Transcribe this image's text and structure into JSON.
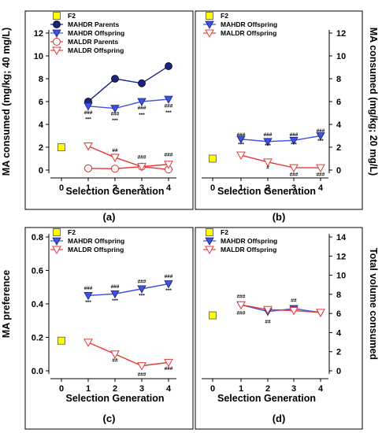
{
  "chart_data": [
    {
      "panel": "a",
      "type": "line",
      "panel_label": "(a)",
      "xlabel": "Selection Generation",
      "ylabel": "MA consumed (mg/kg; 40 mg/L)",
      "ylabel_side": "left",
      "xlim": [
        0,
        4
      ],
      "ylim": [
        0,
        12
      ],
      "yticks": [
        0,
        2,
        4,
        6,
        8,
        10,
        12
      ],
      "grid": false,
      "legend_position": "top-left",
      "series": [
        {
          "name": "F2",
          "marker": "square",
          "color": "#ffff00",
          "x": [
            0
          ],
          "values": [
            2.0
          ]
        },
        {
          "name": "MAHDR Parents",
          "marker": "circle-filled",
          "color": "#1a237e",
          "x": [
            1,
            2,
            3,
            4
          ],
          "values": [
            6.0,
            8.0,
            7.6,
            9.1
          ]
        },
        {
          "name": "MAHDR Offspring",
          "marker": "triangle-down",
          "color": "#3f51e0",
          "x": [
            1,
            2,
            3,
            4
          ],
          "values": [
            5.6,
            5.4,
            6.0,
            6.2
          ]
        },
        {
          "name": "MALDR Parents",
          "marker": "circle-open",
          "color": "#d32f2f",
          "x": [
            1,
            2,
            3,
            4
          ],
          "values": [
            0.15,
            0.12,
            0.3,
            0.05
          ]
        },
        {
          "name": "MALDR Offspring",
          "marker": "triangle-down-open",
          "color": "#e53935",
          "x": [
            1,
            2,
            3,
            4
          ],
          "values": [
            2.1,
            1.1,
            0.3,
            0.5
          ]
        }
      ],
      "annotations": [
        {
          "x": 1,
          "y": 4.9,
          "text": "###"
        },
        {
          "x": 1,
          "y": 4.3,
          "text": "***"
        },
        {
          "x": 2,
          "y": 4.8,
          "text": "###"
        },
        {
          "x": 2,
          "y": 4.2,
          "text": "***"
        },
        {
          "x": 3,
          "y": 5.3,
          "text": "###"
        },
        {
          "x": 3,
          "y": 4.7,
          "text": "***"
        },
        {
          "x": 4,
          "y": 5.5,
          "text": "###"
        },
        {
          "x": 4,
          "y": 4.9,
          "text": "***"
        },
        {
          "x": 2,
          "y": 1.6,
          "text": "##"
        },
        {
          "x": 3,
          "y": 1.0,
          "text": "###"
        },
        {
          "x": 4,
          "y": 1.2,
          "text": "###"
        }
      ]
    },
    {
      "panel": "b",
      "type": "line",
      "panel_label": "(b)",
      "xlabel": "Selection Generation",
      "ylabel": "MA consumed (mg/kg; 20 mg/L)",
      "ylabel_side": "right",
      "xlim": [
        0,
        4
      ],
      "ylim": [
        0,
        12
      ],
      "yticks": [
        0,
        2,
        4,
        6,
        8,
        10,
        12
      ],
      "grid": false,
      "legend_position": "top-left",
      "series": [
        {
          "name": "F2",
          "marker": "square",
          "color": "#ffff00",
          "x": [
            0
          ],
          "values": [
            1.0
          ]
        },
        {
          "name": "MAHDR Offspring",
          "marker": "triangle-down",
          "color": "#3f51e0",
          "x": [
            1,
            2,
            3,
            4
          ],
          "values": [
            2.7,
            2.5,
            2.6,
            3.0
          ]
        },
        {
          "name": "MALDR Offspring",
          "marker": "triangle-down-open",
          "color": "#e53935",
          "x": [
            1,
            2,
            3,
            4
          ],
          "values": [
            1.3,
            0.7,
            0.2,
            0.2
          ]
        }
      ],
      "annotations": [
        {
          "x": 1,
          "y": 2.95,
          "text": "###"
        },
        {
          "x": 1,
          "y": 2.1,
          "text": "***"
        },
        {
          "x": 2,
          "y": 2.95,
          "text": "###"
        },
        {
          "x": 2,
          "y": 2.0,
          "text": "***"
        },
        {
          "x": 3,
          "y": 2.95,
          "text": "###"
        },
        {
          "x": 3,
          "y": 2.1,
          "text": "***"
        },
        {
          "x": 4,
          "y": 3.3,
          "text": "###"
        },
        {
          "x": 4,
          "y": 2.4,
          "text": "***"
        },
        {
          "x": 2,
          "y": 0.1,
          "text": "#"
        },
        {
          "x": 3,
          "y": -0.5,
          "text": "###"
        },
        {
          "x": 4,
          "y": -0.5,
          "text": "###"
        }
      ]
    },
    {
      "panel": "c",
      "type": "line",
      "panel_label": "(c)",
      "xlabel": "Selection Generation",
      "ylabel": "MA preference",
      "ylabel_side": "left",
      "xlim": [
        0,
        4
      ],
      "ylim": [
        0,
        0.8
      ],
      "yticks": [
        0.0,
        0.2,
        0.4,
        0.6,
        0.8
      ],
      "grid": false,
      "legend_position": "top-left",
      "series": [
        {
          "name": "F2",
          "marker": "square",
          "color": "#ffff00",
          "x": [
            0
          ],
          "values": [
            0.18
          ]
        },
        {
          "name": "MAHDR Offspring",
          "marker": "triangle-down",
          "color": "#3f51e0",
          "x": [
            1,
            2,
            3,
            4
          ],
          "values": [
            0.45,
            0.46,
            0.49,
            0.52
          ]
        },
        {
          "name": "MALDR Offspring",
          "marker": "triangle-down-open",
          "color": "#e53935",
          "x": [
            1,
            2,
            3,
            4
          ],
          "values": [
            0.17,
            0.1,
            0.03,
            0.05
          ]
        }
      ],
      "annotations": [
        {
          "x": 1,
          "y": 0.485,
          "text": "###"
        },
        {
          "x": 1,
          "y": 0.4,
          "text": "***"
        },
        {
          "x": 2,
          "y": 0.495,
          "text": "###"
        },
        {
          "x": 2,
          "y": 0.41,
          "text": "***"
        },
        {
          "x": 3,
          "y": 0.525,
          "text": "###"
        },
        {
          "x": 3,
          "y": 0.44,
          "text": "***"
        },
        {
          "x": 4,
          "y": 0.555,
          "text": "###"
        },
        {
          "x": 4,
          "y": 0.47,
          "text": "***"
        },
        {
          "x": 2,
          "y": 0.055,
          "text": "##"
        },
        {
          "x": 3,
          "y": -0.03,
          "text": "###"
        },
        {
          "x": 4,
          "y": 0.005,
          "text": "###"
        }
      ]
    },
    {
      "panel": "d",
      "type": "line",
      "panel_label": "(d)",
      "xlabel": "Selection Generation",
      "ylabel": "Total volume consumed",
      "ylabel_side": "right",
      "xlim": [
        0,
        4
      ],
      "ylim": [
        0,
        14
      ],
      "yticks": [
        0,
        2,
        4,
        6,
        8,
        10,
        12,
        14
      ],
      "grid": false,
      "legend_position": "top-left",
      "series": [
        {
          "name": "F2",
          "marker": "square",
          "color": "#ffff00",
          "x": [
            0
          ],
          "values": [
            5.8
          ]
        },
        {
          "name": "MAHDR Offspring",
          "marker": "triangle-down",
          "color": "#3f51e0",
          "x": [
            1,
            2,
            3,
            4
          ],
          "values": [
            6.9,
            6.2,
            6.5,
            6.1
          ]
        },
        {
          "name": "MALDR Offspring",
          "marker": "triangle-down-open",
          "color": "#e53935",
          "x": [
            1,
            2,
            3,
            4
          ],
          "values": [
            6.9,
            6.4,
            6.3,
            6.1
          ]
        }
      ],
      "annotations": [
        {
          "x": 1,
          "y": 7.6,
          "text": "###"
        },
        {
          "x": 1,
          "y": 5.9,
          "text": "###"
        },
        {
          "x": 2,
          "y": 5.0,
          "text": "##"
        },
        {
          "x": 3,
          "y": 7.2,
          "text": "##"
        }
      ]
    }
  ]
}
